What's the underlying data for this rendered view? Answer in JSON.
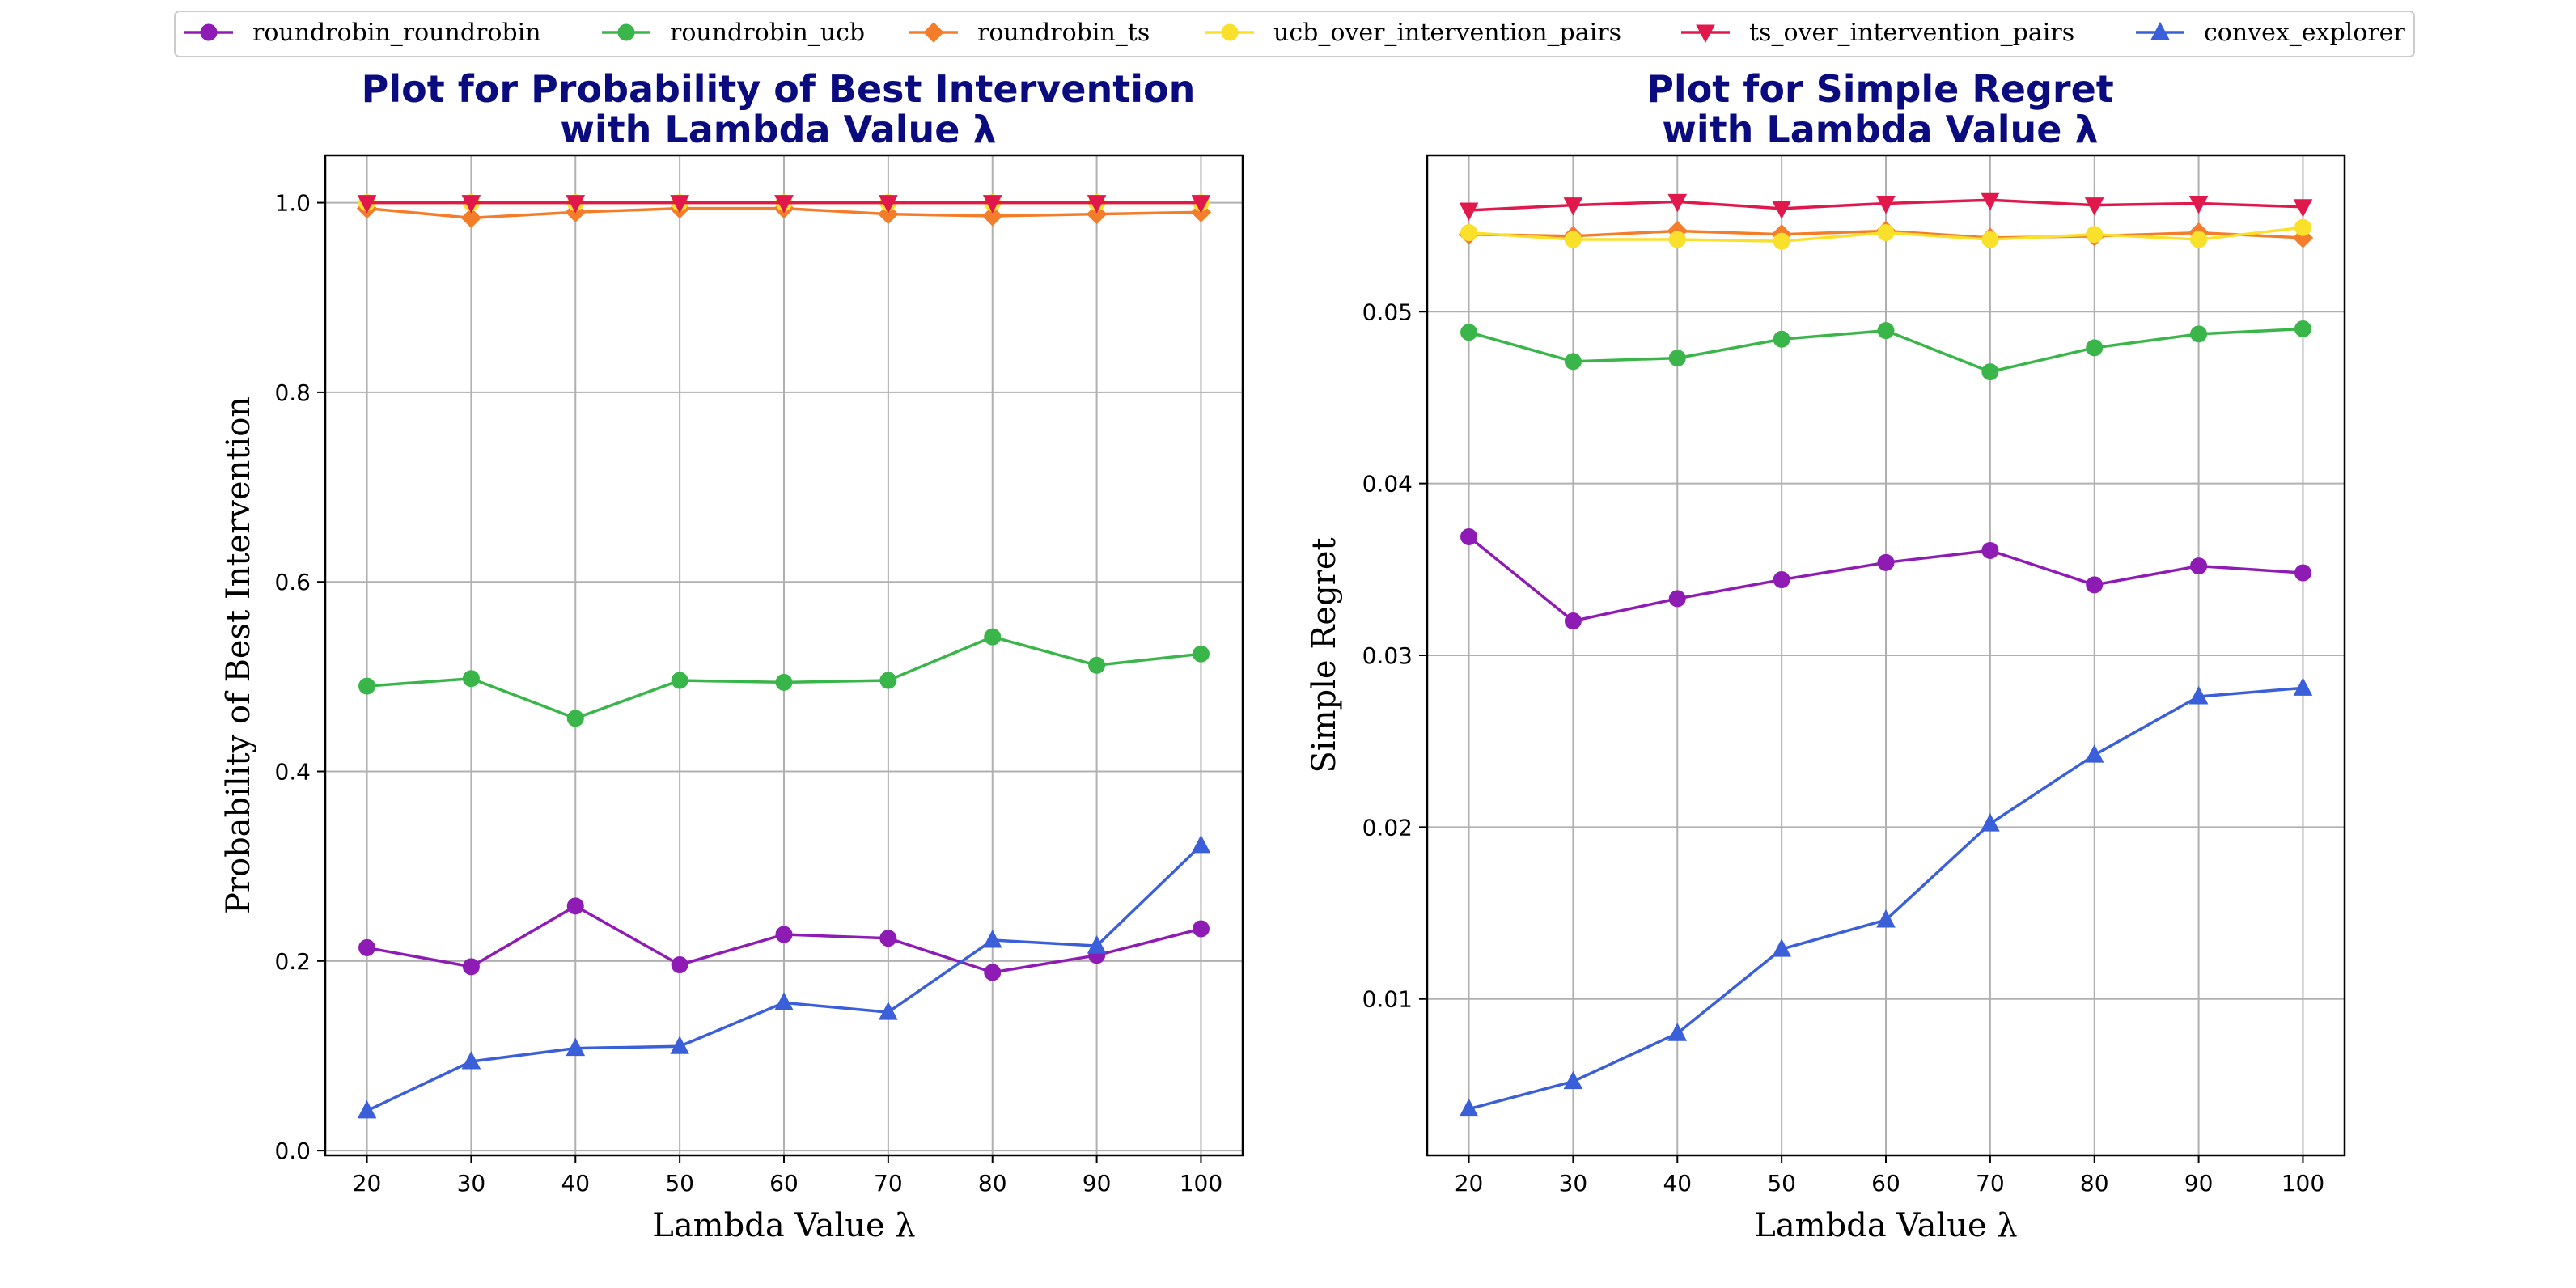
{
  "legend": {
    "entries": [
      {
        "label": "roundrobin_roundrobin",
        "color": "#8e1cb4",
        "marker": "circle"
      },
      {
        "label": "roundrobin_ucb",
        "color": "#3ab54a",
        "marker": "circle"
      },
      {
        "label": "roundrobin_ts",
        "color": "#f47d2a",
        "marker": "diamond"
      },
      {
        "label": "ucb_over_intervention_pairs",
        "color": "#f9e02a",
        "marker": "circle"
      },
      {
        "label": "ts_over_intervention_pairs",
        "color": "#e0184c",
        "marker": "triangle-down"
      },
      {
        "label": "convex_explorer",
        "color": "#3a5fd9",
        "marker": "triangle-up"
      }
    ]
  },
  "chart_data": [
    {
      "type": "line",
      "title_line1": "Plot for Probability of Best Intervention",
      "title_line2": "with Lambda Value λ",
      "xlabel": "Lambda Value λ",
      "ylabel": "Probability of Best Intervention",
      "x": [
        20,
        30,
        40,
        50,
        60,
        70,
        80,
        90,
        100
      ],
      "xlim": [
        16,
        104
      ],
      "ylim": [
        -0.005,
        1.05
      ],
      "xticks": [
        20,
        30,
        40,
        50,
        60,
        70,
        80,
        90,
        100
      ],
      "yticks": [
        0.0,
        0.2,
        0.4,
        0.6,
        0.8,
        1.0
      ],
      "ytick_labels": [
        "0.0",
        "0.2",
        "0.4",
        "0.6",
        "0.8",
        "1.0"
      ],
      "grid": true,
      "series": [
        {
          "name": "roundrobin_roundrobin",
          "values": [
            0.214,
            0.194,
            0.258,
            0.196,
            0.228,
            0.224,
            0.188,
            0.206,
            0.234
          ]
        },
        {
          "name": "roundrobin_ucb",
          "values": [
            0.49,
            0.498,
            0.456,
            0.496,
            0.494,
            0.496,
            0.542,
            0.512,
            0.524
          ]
        },
        {
          "name": "roundrobin_ts",
          "values": [
            0.994,
            0.984,
            0.99,
            0.994,
            0.994,
            0.988,
            0.986,
            0.988,
            0.99
          ]
        },
        {
          "name": "ucb_over_intervention_pairs",
          "values": [
            1.0,
            1.0,
            1.0,
            1.0,
            1.0,
            1.0,
            1.0,
            1.0,
            1.0
          ]
        },
        {
          "name": "ts_over_intervention_pairs",
          "values": [
            1.0,
            1.0,
            1.0,
            1.0,
            1.0,
            1.0,
            1.0,
            1.0,
            1.0
          ]
        },
        {
          "name": "convex_explorer",
          "values": [
            0.042,
            0.094,
            0.108,
            0.11,
            0.156,
            0.146,
            0.222,
            0.216,
            0.322
          ]
        }
      ]
    },
    {
      "type": "line",
      "title_line1": "Plot for Simple Regret",
      "title_line2": "with Lambda Value λ",
      "xlabel": "Lambda Value λ",
      "ylabel": "Simple Regret",
      "x": [
        20,
        30,
        40,
        50,
        60,
        70,
        80,
        90,
        100
      ],
      "xlim": [
        16,
        104
      ],
      "ylim": [
        0.0009,
        0.0591
      ],
      "xticks": [
        20,
        30,
        40,
        50,
        60,
        70,
        80,
        90,
        100
      ],
      "yticks": [
        0.01,
        0.02,
        0.03,
        0.04,
        0.05
      ],
      "ytick_labels": [
        "0.01",
        "0.02",
        "0.03",
        "0.04",
        "0.05"
      ],
      "grid": true,
      "series": [
        {
          "name": "roundrobin_roundrobin",
          "values": [
            0.0369,
            0.032,
            0.0333,
            0.0344,
            0.0354,
            0.0361,
            0.0341,
            0.0352,
            0.0348
          ]
        },
        {
          "name": "roundrobin_ucb",
          "values": [
            0.0488,
            0.0471,
            0.0473,
            0.0484,
            0.0489,
            0.0465,
            0.0479,
            0.0487,
            0.049
          ]
        },
        {
          "name": "roundrobin_ts",
          "values": [
            0.0545,
            0.0544,
            0.0547,
            0.0545,
            0.0547,
            0.0543,
            0.0544,
            0.0546,
            0.0543
          ]
        },
        {
          "name": "ucb_over_intervention_pairs",
          "values": [
            0.0546,
            0.0542,
            0.0542,
            0.0541,
            0.0546,
            0.0542,
            0.0545,
            0.0542,
            0.0549
          ]
        },
        {
          "name": "ts_over_intervention_pairs",
          "values": [
            0.0559,
            0.0562,
            0.0564,
            0.056,
            0.0563,
            0.0565,
            0.0562,
            0.0563,
            0.0561
          ]
        },
        {
          "name": "convex_explorer",
          "values": [
            0.0036,
            0.0052,
            0.008,
            0.0129,
            0.0146,
            0.0202,
            0.0242,
            0.0276,
            0.0281
          ]
        }
      ]
    }
  ]
}
